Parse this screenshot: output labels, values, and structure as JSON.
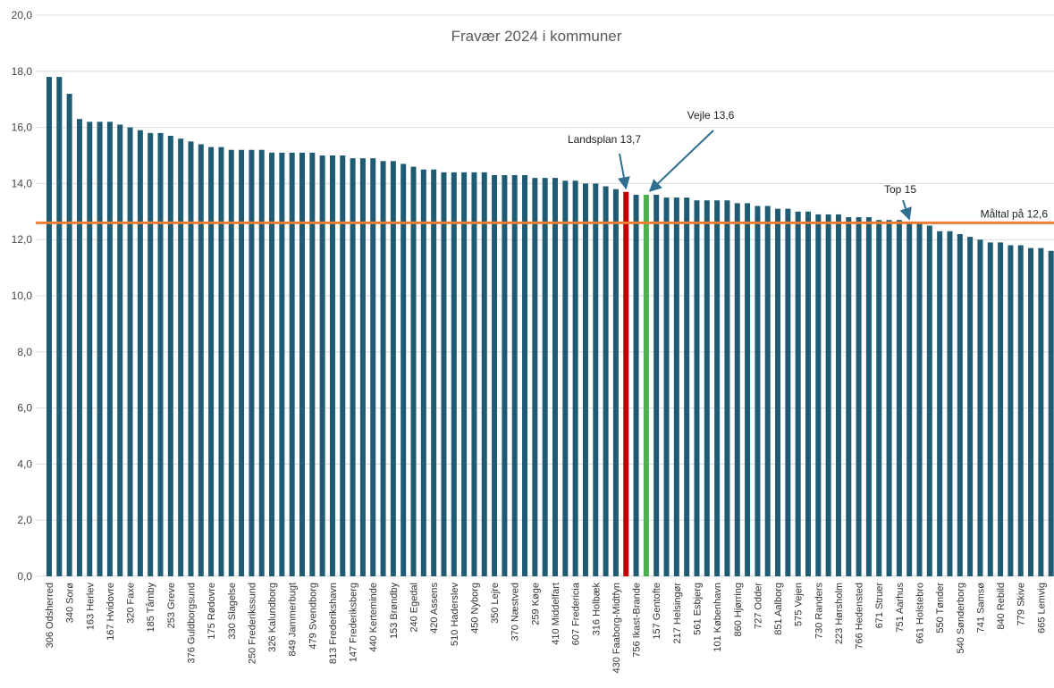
{
  "chart_data": {
    "type": "bar",
    "title": "Fravær 2024 i kommuner",
    "categories": [
      "306 Odsherred",
      null,
      "340 Sorø",
      null,
      "163 Herlev",
      null,
      "167 Hvidovre",
      null,
      "320 Faxe",
      null,
      "185 Tårnby",
      null,
      "253 Greve",
      null,
      "376 Guldborgsund",
      null,
      "175 Rødovre",
      null,
      "330 Slagelse",
      null,
      "250 Frederikssund",
      null,
      "326 Kalundborg",
      null,
      "849 Jammerbugt",
      null,
      "479 Svendborg",
      null,
      "813 Frederikshavn",
      null,
      "147 Frederiksberg",
      null,
      "440 Kerteminde",
      null,
      "153 Brøndby",
      null,
      "240 Egedal",
      null,
      "420 Assens",
      null,
      "510 Haderslev",
      null,
      "450 Nyborg",
      null,
      "350 Lejre",
      null,
      "370 Næstved",
      null,
      "259 Køge",
      null,
      "410 Middelfart",
      null,
      "607 Fredericia",
      null,
      "316 Holbæk",
      null,
      "430 Faaborg-Midtfyn",
      null,
      "756 Ikast-Brande",
      null,
      "157 Gentofte",
      null,
      "217 Helsingør",
      null,
      "561 Esbjerg",
      null,
      "101 København",
      null,
      "860 Hjørring",
      null,
      "727 Odder",
      null,
      "851 Aalborg",
      null,
      "575 Vejen",
      null,
      "730 Randers",
      null,
      "223 Hørsholm",
      null,
      "766 Hedensted",
      null,
      "671 Struer",
      null,
      "751 Aarhus",
      null,
      "661 Holstebro",
      null,
      "550 Tønder",
      null,
      "540 Sønderborg",
      null,
      "741 Samsø",
      null,
      "840 Rebild",
      null,
      "779 Skive",
      null,
      "665 Lemvig",
      null
    ],
    "values": [
      17.8,
      17.8,
      17.2,
      16.3,
      16.2,
      16.2,
      16.2,
      16.1,
      16.0,
      15.9,
      15.8,
      15.8,
      15.7,
      15.6,
      15.5,
      15.4,
      15.3,
      15.3,
      15.2,
      15.2,
      15.2,
      15.2,
      15.1,
      15.1,
      15.1,
      15.1,
      15.1,
      15.0,
      15.0,
      15.0,
      14.9,
      14.9,
      14.9,
      14.8,
      14.8,
      14.7,
      14.6,
      14.5,
      14.5,
      14.4,
      14.4,
      14.4,
      14.4,
      14.4,
      14.3,
      14.3,
      14.3,
      14.3,
      14.2,
      14.2,
      14.2,
      14.1,
      14.1,
      14.0,
      14.0,
      13.9,
      13.8,
      13.7,
      13.6,
      13.6,
      13.6,
      13.5,
      13.5,
      13.5,
      13.4,
      13.4,
      13.4,
      13.4,
      13.3,
      13.3,
      13.2,
      13.2,
      13.1,
      13.1,
      13.0,
      13.0,
      12.9,
      12.9,
      12.9,
      12.8,
      12.8,
      12.8,
      12.7,
      12.7,
      12.7,
      12.6,
      12.6,
      12.5,
      12.3,
      12.3,
      12.2,
      12.1,
      12.0,
      11.9,
      11.9,
      11.8,
      11.8,
      11.7,
      11.7,
      11.6
    ],
    "colors": [
      "#1f5c73",
      "#1f5c73",
      "#1f5c73",
      "#1f5c73",
      "#1f5c73",
      "#1f5c73",
      "#1f5c73",
      "#1f5c73",
      "#1f5c73",
      "#1f5c73",
      "#1f5c73",
      "#1f5c73",
      "#1f5c73",
      "#1f5c73",
      "#1f5c73",
      "#1f5c73",
      "#1f5c73",
      "#1f5c73",
      "#1f5c73",
      "#1f5c73",
      "#1f5c73",
      "#1f5c73",
      "#1f5c73",
      "#1f5c73",
      "#1f5c73",
      "#1f5c73",
      "#1f5c73",
      "#1f5c73",
      "#1f5c73",
      "#1f5c73",
      "#1f5c73",
      "#1f5c73",
      "#1f5c73",
      "#1f5c73",
      "#1f5c73",
      "#1f5c73",
      "#1f5c73",
      "#1f5c73",
      "#1f5c73",
      "#1f5c73",
      "#1f5c73",
      "#1f5c73",
      "#1f5c73",
      "#1f5c73",
      "#1f5c73",
      "#1f5c73",
      "#1f5c73",
      "#1f5c73",
      "#1f5c73",
      "#1f5c73",
      "#1f5c73",
      "#1f5c73",
      "#1f5c73",
      "#1f5c73",
      "#1f5c73",
      "#1f5c73",
      "#1f5c73",
      "#c00000",
      "#1f5c73",
      "#4caf50",
      "#1f5c73",
      "#1f5c73",
      "#1f5c73",
      "#1f5c73",
      "#1f5c73",
      "#1f5c73",
      "#1f5c73",
      "#1f5c73",
      "#1f5c73",
      "#1f5c73",
      "#1f5c73",
      "#1f5c73",
      "#1f5c73",
      "#1f5c73",
      "#1f5c73",
      "#1f5c73",
      "#1f5c73",
      "#1f5c73",
      "#1f5c73",
      "#1f5c73",
      "#1f5c73",
      "#1f5c73",
      "#1f5c73",
      "#1f5c73",
      "#1f5c73",
      "#1f5c73",
      "#1f5c73",
      "#1f5c73",
      "#1f5c73",
      "#1f5c73",
      "#1f5c73",
      "#1f5c73",
      "#1f5c73",
      "#1f5c73",
      "#1f5c73",
      "#1f5c73",
      "#1f5c73",
      "#1f5c73",
      "#1f5c73",
      "#1f5c73"
    ],
    "ylim": [
      0,
      20
    ],
    "yticks": [
      {
        "value": 0,
        "label": "0,0"
      },
      {
        "value": 2,
        "label": "2,0"
      },
      {
        "value": 4,
        "label": "4,0"
      },
      {
        "value": 6,
        "label": "6,0"
      },
      {
        "value": 8,
        "label": "8,0"
      },
      {
        "value": 10,
        "label": "10,0"
      },
      {
        "value": 12,
        "label": "12,0"
      },
      {
        "value": 14,
        "label": "14,0"
      },
      {
        "value": 16,
        "label": "16,0"
      },
      {
        "value": 18,
        "label": "18,0"
      },
      {
        "value": 20,
        "label": "20,0"
      }
    ],
    "grid": true,
    "target": {
      "value": 12.6,
      "label": "Måltal på 12,6",
      "color": "#ed7d31"
    },
    "annotations": [
      "Landsplan 13,7",
      "Vejle 13,6",
      "Top 15"
    ]
  }
}
